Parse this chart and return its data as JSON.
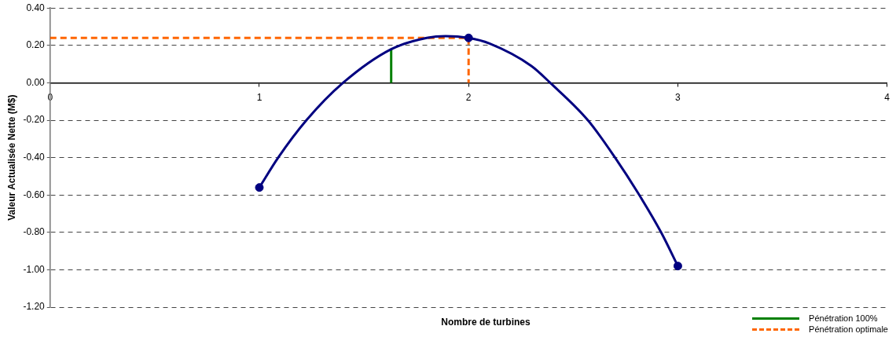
{
  "chart_data": {
    "type": "line",
    "xlabel": "Nombre de turbines",
    "ylabel": "Valeur Actualisée Nette (M$)",
    "xlim": [
      0,
      4
    ],
    "xticks": [
      0,
      1,
      2,
      3,
      4
    ],
    "ylim": [
      -1.2,
      0.4
    ],
    "yticks": [
      {
        "value": -1.2,
        "label": "-1.20"
      },
      {
        "value": -1,
        "label": "-1.00"
      },
      {
        "value": -0.8,
        "label": "-0.80"
      },
      {
        "value": -0.6,
        "label": "-0.60"
      },
      {
        "value": -0.4,
        "label": "-0.40"
      },
      {
        "value": -0.2,
        "label": "-0.20"
      },
      {
        "value": 0,
        "label": "0.00"
      },
      {
        "value": 0.2,
        "label": "0.20"
      },
      {
        "value": 0.4,
        "label": "0.40"
      }
    ],
    "grid": "y",
    "legend": "bottom right",
    "series": [
      {
        "color": "#000080",
        "marker": "none",
        "x": [
          1,
          1.09,
          1.225,
          1.4,
          1.63,
          1.8,
          1.89,
          2,
          2.1,
          2.3,
          2.39,
          2.57,
          2.7,
          2.81,
          2.92,
          3
        ],
        "values": [
          -0.56,
          -0.4,
          -0.2,
          0,
          0.18,
          0.24,
          0.25,
          0.24,
          0.21,
          0.09,
          0,
          -0.2,
          -0.4,
          -0.59,
          -0.8,
          -0.98
        ]
      },
      {
        "type": "scatter",
        "color": "#000080",
        "marker": "circle",
        "x": [
          1,
          2,
          3
        ],
        "values": [
          -0.56,
          0.24,
          -0.98
        ]
      },
      {
        "name": "Pénétration 100%",
        "color": "#008000",
        "marker": "none",
        "line_style": "solid",
        "x": [
          1.63,
          1.63
        ],
        "values": [
          0,
          0.18
        ]
      },
      {
        "name": "Pénétration optimale",
        "color": "#ff6600",
        "marker": "none",
        "line_style": "dashed",
        "x": [
          0,
          2,
          2
        ],
        "values": [
          0.24,
          0.24,
          0
        ]
      }
    ]
  }
}
